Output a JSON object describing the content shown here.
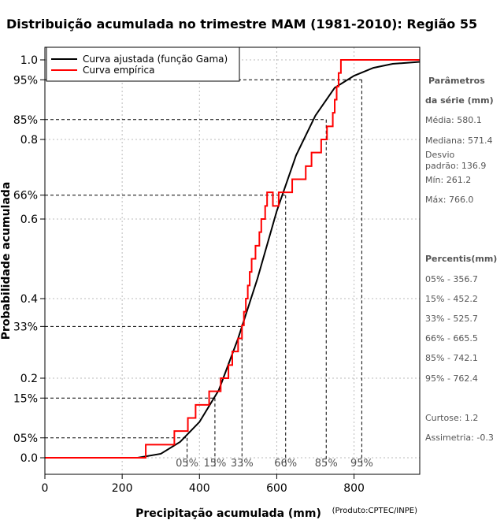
{
  "chart_data": {
    "type": "line",
    "title": "Distribuição acumulada no trimestre MAM (1981-2010): Região 55",
    "xlabel": "Precipitação acumulada (mm)",
    "ylabel": "Probabilidade acumulada",
    "xlim": [
      0,
      970
    ],
    "ylim": [
      0,
      1
    ],
    "x_ticks": [
      0,
      200,
      400,
      600,
      800
    ],
    "y_ticks": [
      {
        "value": 0.0,
        "label": "0.0"
      },
      {
        "value": 0.2,
        "label": "0.2"
      },
      {
        "value": 0.4,
        "label": "0.4"
      },
      {
        "value": 0.6,
        "label": "0.6"
      },
      {
        "value": 0.8,
        "label": "0.8"
      },
      {
        "value": 1.0,
        "label": "1.0"
      }
    ],
    "pct_ticks": [
      {
        "value": 0.05,
        "label": "05%"
      },
      {
        "value": 0.15,
        "label": "15%"
      },
      {
        "value": 0.33,
        "label": "33%"
      },
      {
        "value": 0.66,
        "label": "66%"
      },
      {
        "value": 0.85,
        "label": "85%"
      },
      {
        "value": 0.95,
        "label": "95%"
      }
    ],
    "percentile_lines": [
      {
        "label": "05%",
        "p": 0.05,
        "x": 368
      },
      {
        "label": "15%",
        "p": 0.15,
        "x": 440
      },
      {
        "label": "33%",
        "p": 0.33,
        "x": 510
      },
      {
        "label": "66%",
        "p": 0.66,
        "x": 623
      },
      {
        "label": "85%",
        "p": 0.85,
        "x": 728
      },
      {
        "label": "95%",
        "p": 0.95,
        "x": 820
      }
    ],
    "legend": {
      "position": "top-left",
      "entries": [
        {
          "label": "Curva ajustada (função Gama)",
          "color": "#000000"
        },
        {
          "label": "Curva empírica",
          "color": "#ff0000"
        }
      ]
    },
    "series": [
      {
        "name": "Curva ajustada (função Gama)",
        "color": "#000000",
        "x": [
          0,
          240,
          300,
          350,
          400,
          450,
          500,
          550,
          600,
          650,
          700,
          750,
          800,
          850,
          900,
          970
        ],
        "y": [
          0,
          0,
          0.01,
          0.04,
          0.09,
          0.17,
          0.3,
          0.45,
          0.62,
          0.76,
          0.86,
          0.93,
          0.96,
          0.98,
          0.99,
          0.995
        ]
      },
      {
        "name": "Curva empírica",
        "color": "#ff0000",
        "step": true,
        "x": [
          0,
          261,
          335,
          370,
          390,
          425,
          455,
          475,
          485,
          500,
          510,
          515,
          520,
          525,
          530,
          535,
          545,
          555,
          560,
          570,
          575,
          590,
          605,
          640,
          675,
          690,
          715,
          730,
          745,
          750,
          755,
          760,
          766,
          970
        ],
        "y": [
          0,
          0.033,
          0.067,
          0.1,
          0.133,
          0.167,
          0.2,
          0.233,
          0.267,
          0.3,
          0.333,
          0.367,
          0.4,
          0.433,
          0.467,
          0.5,
          0.533,
          0.567,
          0.6,
          0.633,
          0.667,
          0.633,
          0.667,
          0.7,
          0.733,
          0.767,
          0.8,
          0.833,
          0.867,
          0.9,
          0.933,
          0.967,
          1.0,
          1.0
        ]
      }
    ],
    "source": "(Produto:CPTEC/INPE)"
  },
  "stats": {
    "params_title_1": "Parâmetros",
    "params_title_2": "da série (mm)",
    "media": "Média: 580.1",
    "mediana": "Mediana: 571.4",
    "desvio_1": "Desvio",
    "desvio_2": "padrão: 136.9",
    "min": "Mín: 261.2",
    "max": "Máx: 766.0",
    "percentis_title": "Percentis(mm)",
    "p05": "05% - 356.7",
    "p15": "15% - 452.2",
    "p33": "33% - 525.7",
    "p66": "66% - 665.5",
    "p85": "85% - 742.1",
    "p95": "95% - 762.4",
    "curtose": "Curtose: 1.2",
    "assimetria": "Assimetria: -0.3"
  }
}
